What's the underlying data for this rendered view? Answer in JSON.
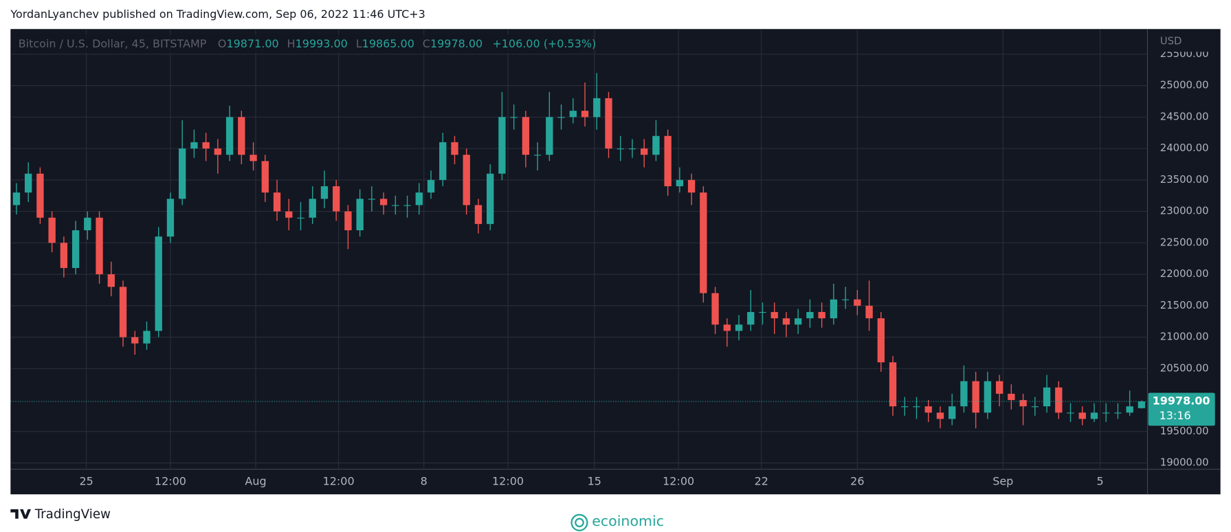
{
  "header": "YordanLyanchev published on TradingView.com, Sep 06, 2022 11:46 UTC+3",
  "chart_data": {
    "type": "candlestick",
    "title": "Bitcoin / U.S. Dollar, 45, BITSTAMP",
    "ohlc_legend": {
      "open_label": "O",
      "open": "19871.00",
      "high_label": "H",
      "high": "19993.00",
      "low_label": "L",
      "low": "19865.00",
      "close_label": "C",
      "close": "19978.00",
      "change": "+106.00 (+0.53%)"
    },
    "y_axis_label": "USD",
    "up_color": "#26a69a",
    "down_color": "#ef5350",
    "grid": true,
    "xlim": [
      0,
      96
    ],
    "xticks": [
      {
        "value": 6.4,
        "label": "25"
      },
      {
        "value": 13.5,
        "label": "12:00"
      },
      {
        "value": 20.7,
        "label": "Aug"
      },
      {
        "value": 27.7,
        "label": "12:00"
      },
      {
        "value": 34.9,
        "label": "8"
      },
      {
        "value": 42,
        "label": "12:00"
      },
      {
        "value": 49.3,
        "label": "15"
      },
      {
        "value": 56.4,
        "label": "12:00"
      },
      {
        "value": 63.4,
        "label": "22"
      },
      {
        "value": 71.5,
        "label": "26"
      },
      {
        "value": 83.8,
        "label": "Sep"
      },
      {
        "value": 92,
        "label": "5"
      }
    ],
    "ylim": [
      18900,
      25900
    ],
    "yticks": [
      {
        "value": 19000,
        "label": "19000.00"
      },
      {
        "value": 19500,
        "label": "19500.00"
      },
      {
        "value": 20500,
        "label": "20500.00"
      },
      {
        "value": 21000,
        "label": "21000.00"
      },
      {
        "value": 21500,
        "label": "21500.00"
      },
      {
        "value": 22000,
        "label": "22000.00"
      },
      {
        "value": 22500,
        "label": "22500.00"
      },
      {
        "value": 23000,
        "label": "23000.00"
      },
      {
        "value": 23500,
        "label": "23500.00"
      },
      {
        "value": 24000,
        "label": "24000.00"
      },
      {
        "value": 24500,
        "label": "24500.00"
      },
      {
        "value": 25000,
        "label": "25000.00"
      },
      {
        "value": 25500,
        "label": "25500.00"
      }
    ],
    "open": [
      23100,
      23300,
      23600,
      22900,
      22500,
      22100,
      22700,
      22900,
      22000,
      21800,
      21000,
      20900,
      21100,
      22600,
      23200,
      24000,
      24100,
      24000,
      23900,
      24500,
      23900,
      23800,
      23300,
      23000,
      22900,
      22900,
      23200,
      23400,
      23000,
      22700,
      23200,
      23200,
      23100,
      23100,
      23100,
      23300,
      23500,
      24100,
      23900,
      23100,
      22800,
      23600,
      24500,
      24500,
      23900,
      23900,
      24500,
      24500,
      24600,
      24500,
      24800,
      24000,
      24000,
      24000,
      23900,
      24200,
      23400,
      23500,
      23300,
      21700,
      21200,
      21100,
      21200,
      21400,
      21400,
      21300,
      21200,
      21300,
      21400,
      21300,
      21600,
      21600,
      21500,
      21300,
      20600,
      19900,
      19900,
      19900,
      19800,
      19700,
      19900,
      20300,
      19800,
      20300,
      20100,
      20000,
      19900,
      19900,
      20200,
      19800,
      19800,
      19700,
      19800,
      19800,
      19800,
      19871
    ],
    "high": [
      23450,
      23780,
      23700,
      23000,
      22600,
      22850,
      23000,
      23000,
      22200,
      21900,
      21100,
      21250,
      22750,
      23300,
      24450,
      24300,
      24250,
      24150,
      24680,
      24600,
      24100,
      23900,
      23500,
      23200,
      23150,
      23400,
      23650,
      23500,
      23100,
      23350,
      23400,
      23300,
      23250,
      23250,
      23450,
      23650,
      24250,
      24200,
      24000,
      23200,
      23750,
      24900,
      24700,
      24600,
      24100,
      24900,
      24700,
      24800,
      25050,
      25200,
      24900,
      24200,
      24150,
      24150,
      24450,
      24300,
      23700,
      23600,
      23400,
      21800,
      21300,
      21350,
      21750,
      21550,
      21550,
      21400,
      21450,
      21600,
      21550,
      21850,
      21800,
      21750,
      21900,
      21400,
      20700,
      20050,
      20050,
      20000,
      19900,
      20100,
      20550,
      20450,
      20450,
      20400,
      20250,
      20100,
      20050,
      20400,
      20300,
      19950,
      19900,
      19950,
      19950,
      19950,
      20150,
      19993
    ],
    "low": [
      22950,
      23150,
      22800,
      22350,
      21950,
      22000,
      22550,
      21850,
      21650,
      20850,
      20720,
      20800,
      21000,
      22500,
      23100,
      23850,
      23800,
      23600,
      23800,
      23750,
      23650,
      23150,
      22850,
      22700,
      22700,
      22800,
      23050,
      22850,
      22400,
      22600,
      23000,
      22950,
      22950,
      22900,
      22950,
      23200,
      23400,
      23750,
      22950,
      22650,
      22700,
      23500,
      24300,
      23700,
      23650,
      23800,
      24300,
      24400,
      24350,
      24300,
      23850,
      23800,
      23850,
      23700,
      23800,
      23250,
      23300,
      23100,
      21550,
      21050,
      20850,
      20950,
      21100,
      21200,
      21050,
      21000,
      21050,
      21150,
      21150,
      21200,
      21450,
      21350,
      21100,
      20450,
      19750,
      19750,
      19700,
      19650,
      19550,
      19600,
      19800,
      19550,
      19700,
      19900,
      19850,
      19600,
      19750,
      19800,
      19700,
      19650,
      19600,
      19650,
      19650,
      19700,
      19750,
      19865
    ],
    "close": [
      23300,
      23600,
      22900,
      22500,
      22100,
      22700,
      22900,
      22000,
      21800,
      21000,
      20900,
      21100,
      22600,
      23200,
      24000,
      24100,
      24000,
      23900,
      24500,
      23900,
      23800,
      23300,
      23000,
      22900,
      22900,
      23200,
      23400,
      23000,
      22700,
      23200,
      23200,
      23100,
      23100,
      23100,
      23300,
      23500,
      24100,
      23900,
      23100,
      22800,
      23600,
      24500,
      24500,
      23900,
      23900,
      24500,
      24500,
      24600,
      24500,
      24800,
      24000,
      24000,
      24000,
      23900,
      24200,
      23400,
      23500,
      23300,
      21700,
      21200,
      21100,
      21200,
      21400,
      21400,
      21300,
      21200,
      21300,
      21400,
      21300,
      21600,
      21600,
      21500,
      21300,
      20600,
      19900,
      19900,
      19900,
      19800,
      19700,
      19900,
      20300,
      19800,
      20300,
      20100,
      20000,
      19900,
      19900,
      20200,
      19800,
      19800,
      19700,
      19800,
      19800,
      19800,
      19900,
      19978
    ],
    "last_price_label": "19978.00",
    "countdown": "13:16"
  },
  "footer": {
    "brand": "TradingView",
    "watermark": "ecoinomic"
  }
}
